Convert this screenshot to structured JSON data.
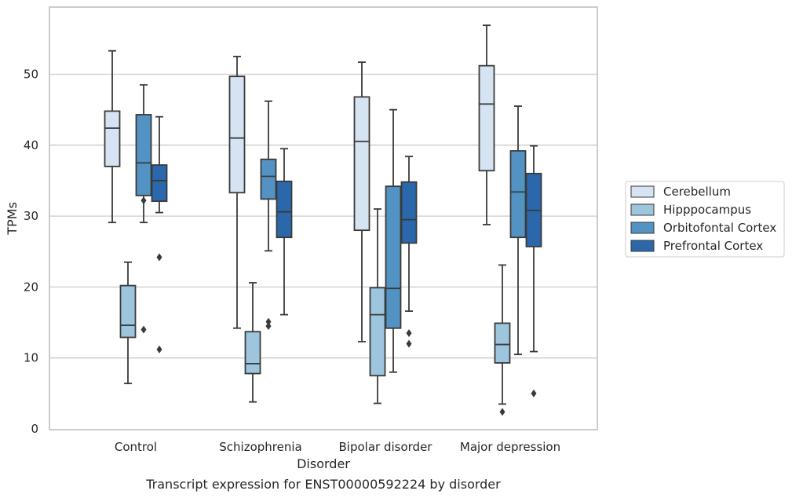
{
  "chart_data": {
    "type": "box",
    "xlabel": "Disorder",
    "ylabel": "TPMs",
    "caption": "Transcript expression for ENST00000592224 by disorder",
    "ylim": [
      0,
      59
    ],
    "yticks": [
      0,
      10,
      20,
      30,
      40,
      50
    ],
    "grid": "horizontal",
    "legend_position": "right",
    "categories": [
      "Control",
      "Schizophrenia",
      "Bipolar disorder",
      "Major depression"
    ],
    "series": [
      {
        "name": "Cerebellum",
        "color": "#d5e3f2",
        "boxes": [
          {
            "whisker_low": 29.1,
            "q1": 37.0,
            "median": 42.4,
            "q3": 44.8,
            "whisker_high": 53.3,
            "outliers": []
          },
          {
            "whisker_low": 14.2,
            "q1": 33.3,
            "median": 41.0,
            "q3": 49.7,
            "whisker_high": 52.5,
            "outliers": []
          },
          {
            "whisker_low": 12.3,
            "q1": 28.0,
            "median": 40.5,
            "q3": 46.8,
            "whisker_high": 51.7,
            "outliers": []
          },
          {
            "whisker_low": 28.8,
            "q1": 36.4,
            "median": 45.8,
            "q3": 51.2,
            "whisker_high": 56.9,
            "outliers": []
          }
        ]
      },
      {
        "name": "Hipppocampus",
        "color": "#9dc5de",
        "boxes": [
          {
            "whisker_low": 6.4,
            "q1": 12.9,
            "median": 14.6,
            "q3": 20.2,
            "whisker_high": 23.5,
            "outliers": []
          },
          {
            "whisker_low": 3.8,
            "q1": 7.8,
            "median": 9.2,
            "q3": 13.7,
            "whisker_high": 20.6,
            "outliers": []
          },
          {
            "whisker_low": 3.6,
            "q1": 7.5,
            "median": 16.1,
            "q3": 19.9,
            "whisker_high": 31.0,
            "outliers": []
          },
          {
            "whisker_low": 3.5,
            "q1": 9.3,
            "median": 11.9,
            "q3": 14.9,
            "whisker_high": 23.1,
            "outliers": [
              2.4
            ]
          }
        ]
      },
      {
        "name": "Orbitofontal Cortex",
        "color": "#5293c4",
        "boxes": [
          {
            "whisker_low": 29.1,
            "q1": 32.9,
            "median": 37.5,
            "q3": 44.3,
            "whisker_high": 48.5,
            "outliers": [
              32.2,
              14.0
            ]
          },
          {
            "whisker_low": 25.1,
            "q1": 32.4,
            "median": 35.6,
            "q3": 38.0,
            "whisker_high": 46.2,
            "outliers": [
              15.1,
              14.5
            ]
          },
          {
            "whisker_low": 8.0,
            "q1": 14.2,
            "median": 19.8,
            "q3": 34.2,
            "whisker_high": 45.0,
            "outliers": []
          },
          {
            "whisker_low": 10.5,
            "q1": 27.0,
            "median": 33.4,
            "q3": 39.2,
            "whisker_high": 45.5,
            "outliers": []
          }
        ]
      },
      {
        "name": "Prefrontal Cortex",
        "color": "#2a68ab",
        "boxes": [
          {
            "whisker_low": 30.5,
            "q1": 32.1,
            "median": 35.0,
            "q3": 37.2,
            "whisker_high": 44.0,
            "outliers": [
              24.2,
              11.2
            ]
          },
          {
            "whisker_low": 16.1,
            "q1": 27.0,
            "median": 30.6,
            "q3": 34.9,
            "whisker_high": 39.5,
            "outliers": []
          },
          {
            "whisker_low": 16.6,
            "q1": 26.2,
            "median": 29.5,
            "q3": 34.8,
            "whisker_high": 38.4,
            "outliers": [
              13.5,
              12.0
            ]
          },
          {
            "whisker_low": 10.9,
            "q1": 25.7,
            "median": 30.8,
            "q3": 36.0,
            "whisker_high": 39.9,
            "outliers": [
              5.0
            ]
          }
        ]
      }
    ]
  }
}
